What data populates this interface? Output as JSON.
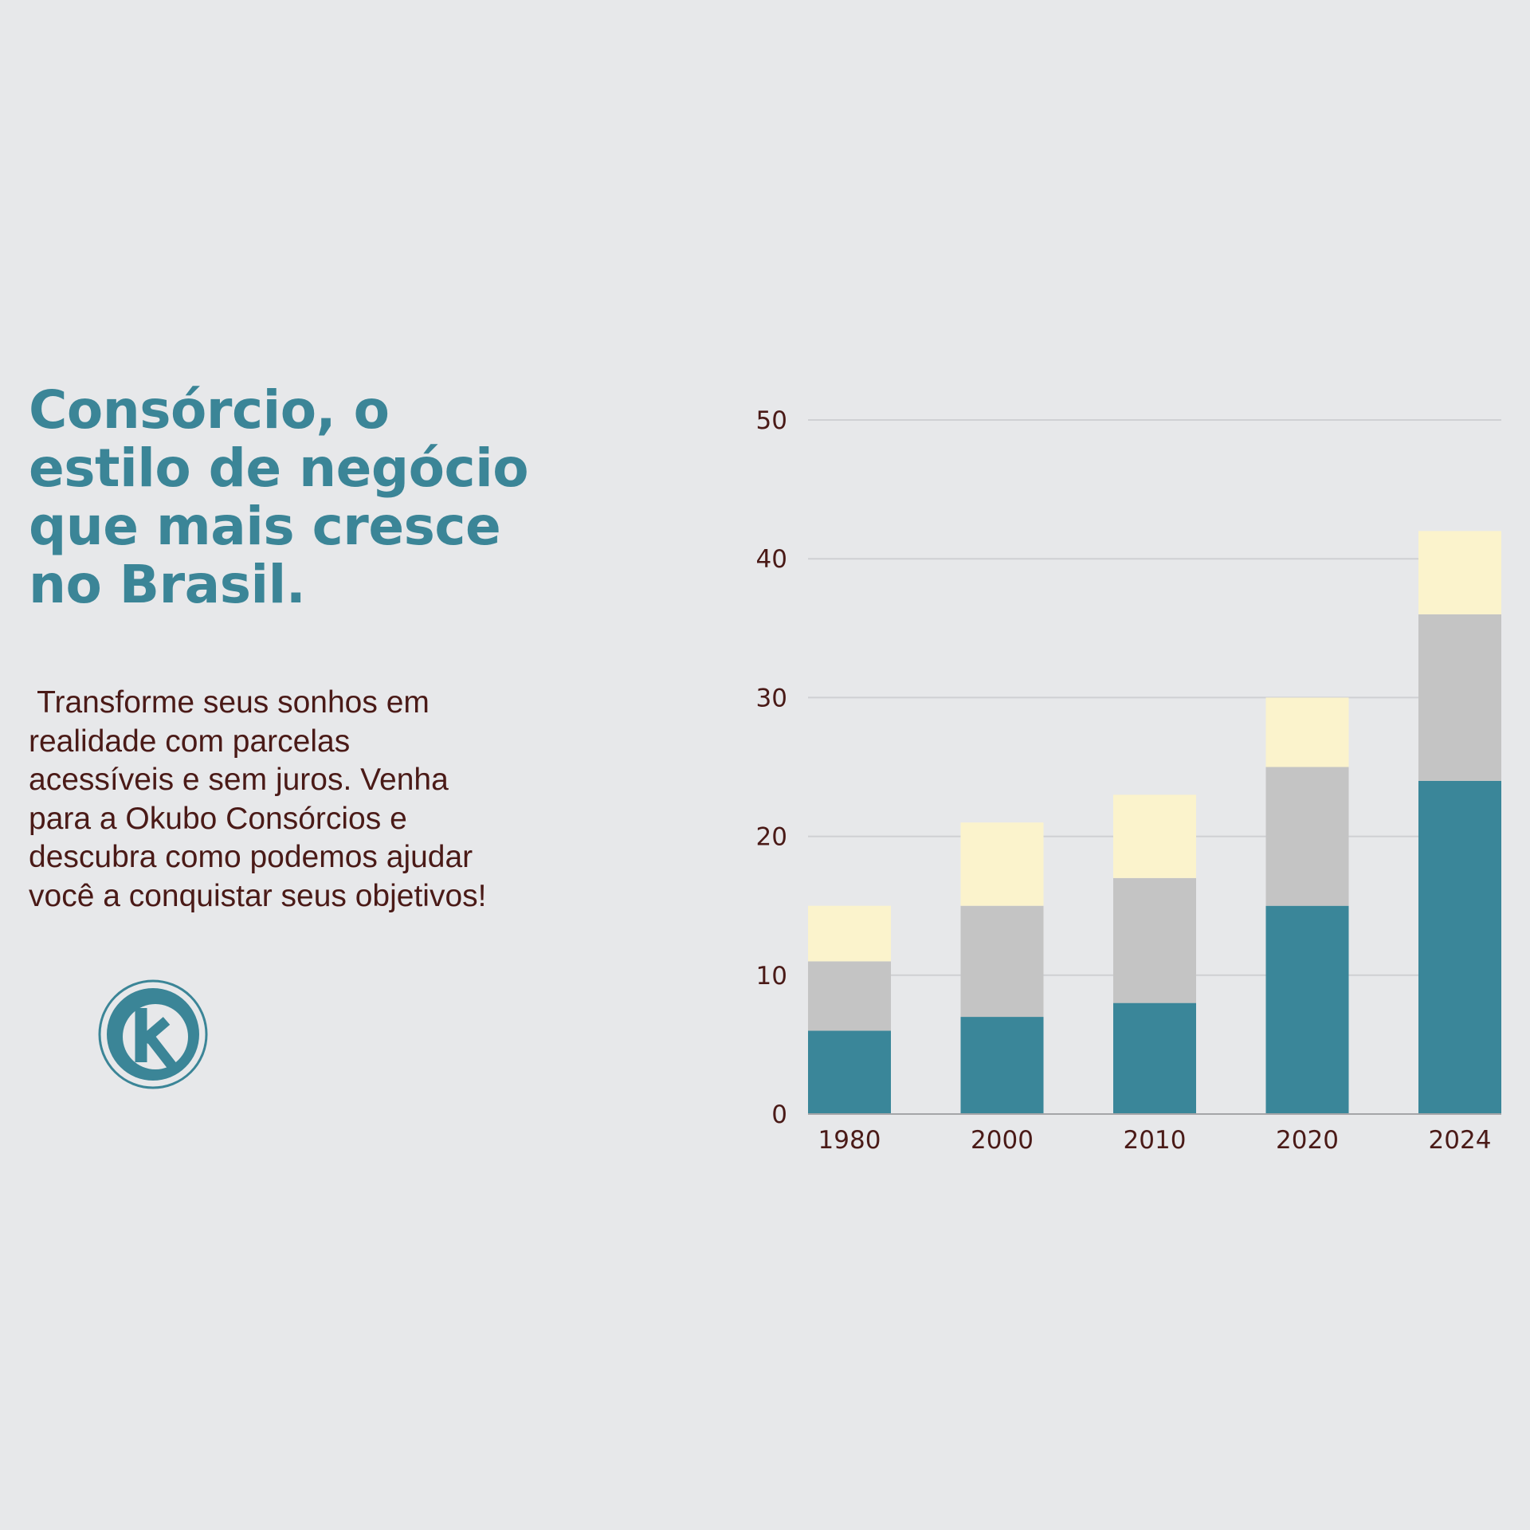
{
  "headline": {
    "lines": [
      "Consórcio, o",
      "estilo de negócio",
      "que mais cresce",
      "no Brasil."
    ]
  },
  "body": {
    "lines": [
      " Transforme seus sonhos em",
      "realidade com parcelas",
      "acessíveis e sem juros. Venha",
      "para a Okubo Consórcios e",
      "descubra como podemos ajudar",
      "você a conquistar seus objetivos!"
    ]
  },
  "logo": {
    "icon": "okubo-k-logo-icon",
    "color": "#3b8597"
  },
  "chart_data": {
    "type": "bar",
    "stacked": true,
    "categories": [
      "1980",
      "2000",
      "2010",
      "2020",
      "2024"
    ],
    "series": [
      {
        "color": "#3a8699",
        "values": [
          6,
          7,
          8,
          15,
          24
        ]
      },
      {
        "color": "#c4c4c4",
        "values": [
          5,
          8,
          9,
          10,
          12
        ]
      },
      {
        "color": "#fbf3cc",
        "values": [
          4,
          6,
          6,
          5,
          6
        ]
      }
    ],
    "yticks": [
      0,
      10,
      20,
      30,
      40,
      50
    ],
    "ylim": [
      0,
      50
    ],
    "grid": true,
    "title": "",
    "xlabel": "",
    "ylabel": ""
  }
}
